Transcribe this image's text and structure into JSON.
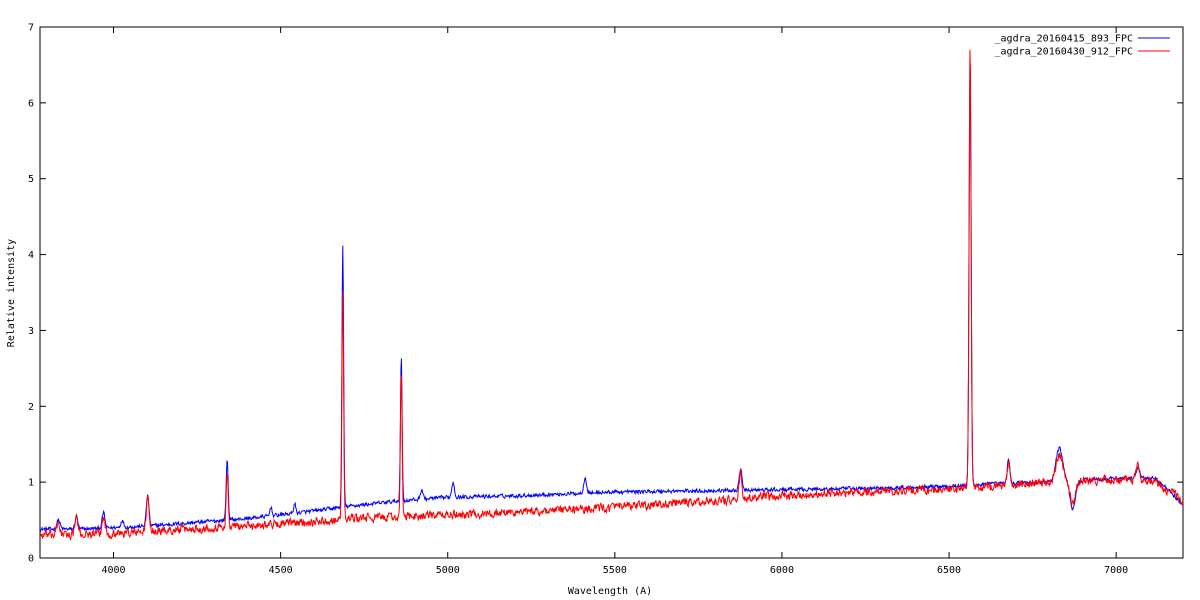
{
  "chart_data": {
    "type": "line",
    "title": "",
    "xlabel": "Wavelength (A)",
    "ylabel": "Relative intensity",
    "xlim": [
      3780,
      7200
    ],
    "ylim": [
      0,
      7
    ],
    "x_ticks": [
      4000,
      4500,
      5000,
      5500,
      6000,
      6500,
      7000
    ],
    "y_ticks": [
      0,
      1,
      2,
      3,
      4,
      5,
      6,
      7
    ],
    "grid": false,
    "legend_position": "top-right",
    "series": [
      {
        "name": "_agdra_20160415_893_FPC",
        "color": "#0000ff",
        "continuum": [
          [
            3780,
            0.38
          ],
          [
            3900,
            0.38
          ],
          [
            4100,
            0.42
          ],
          [
            4400,
            0.52
          ],
          [
            4600,
            0.62
          ],
          [
            4700,
            0.68
          ],
          [
            4850,
            0.75
          ],
          [
            5000,
            0.8
          ],
          [
            5200,
            0.82
          ],
          [
            5500,
            0.87
          ],
          [
            6000,
            0.9
          ],
          [
            6300,
            0.92
          ],
          [
            6500,
            0.95
          ],
          [
            6650,
            0.98
          ],
          [
            6800,
            1.0
          ],
          [
            7000,
            1.05
          ],
          [
            7120,
            1.05
          ],
          [
            7200,
            0.7
          ]
        ],
        "peaks": [
          [
            3835,
            0.5,
            5
          ],
          [
            3889,
            0.55,
            4
          ],
          [
            3970,
            0.6,
            4
          ],
          [
            4026,
            0.5,
            4
          ],
          [
            4102,
            0.82,
            4
          ],
          [
            4340,
            1.3,
            3
          ],
          [
            4471,
            0.68,
            3
          ],
          [
            4542,
            0.72,
            3
          ],
          [
            4686,
            4.12,
            2.5
          ],
          [
            4861,
            2.65,
            2.5
          ],
          [
            4922,
            0.9,
            4
          ],
          [
            5016,
            1.0,
            4
          ],
          [
            5411,
            1.07,
            4
          ],
          [
            5876,
            1.18,
            4
          ],
          [
            6563,
            6.6,
            3
          ],
          [
            6678,
            1.3,
            4
          ],
          [
            6830,
            1.45,
            10
          ],
          [
            6870,
            0.65,
            8
          ],
          [
            7065,
            1.2,
            5
          ]
        ]
      },
      {
        "name": "_agdra_20160430_912_FPC",
        "color": "#ff0000",
        "continuum": [
          [
            3780,
            0.3
          ],
          [
            4000,
            0.32
          ],
          [
            4300,
            0.4
          ],
          [
            4600,
            0.48
          ],
          [
            4700,
            0.52
          ],
          [
            4900,
            0.55
          ],
          [
            5200,
            0.6
          ],
          [
            5500,
            0.67
          ],
          [
            5800,
            0.75
          ],
          [
            6000,
            0.82
          ],
          [
            6300,
            0.88
          ],
          [
            6500,
            0.9
          ],
          [
            6650,
            0.95
          ],
          [
            6800,
            1.0
          ],
          [
            7000,
            1.03
          ],
          [
            7120,
            1.0
          ],
          [
            7200,
            0.75
          ]
        ],
        "peaks": [
          [
            3835,
            0.45,
            5
          ],
          [
            3889,
            0.55,
            4
          ],
          [
            3970,
            0.55,
            4
          ],
          [
            4102,
            0.8,
            4
          ],
          [
            4340,
            1.1,
            3
          ],
          [
            4686,
            3.55,
            2.5
          ],
          [
            4861,
            2.45,
            2.5
          ],
          [
            5876,
            1.1,
            4
          ],
          [
            6563,
            6.75,
            3
          ],
          [
            6678,
            1.25,
            4
          ],
          [
            6830,
            1.35,
            10
          ],
          [
            6870,
            0.7,
            8
          ],
          [
            7065,
            1.25,
            5
          ]
        ]
      }
    ]
  }
}
